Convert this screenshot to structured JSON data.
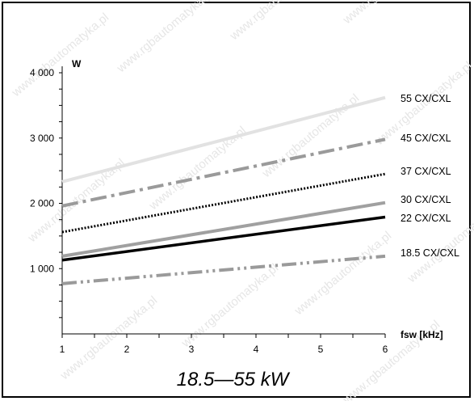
{
  "chart_data": {
    "type": "line",
    "title": "",
    "subtitle": "18.5—55 kW",
    "xlabel": "fsw [kHz]",
    "ylabel": "W",
    "x": [
      1,
      6
    ],
    "xlim": [
      1,
      6
    ],
    "ylim": [
      0,
      4000
    ],
    "x_ticks": [
      "1",
      "2",
      "3",
      "4",
      "5",
      "6"
    ],
    "y_ticks": [
      {
        "value": 1000,
        "label": "1 000"
      },
      {
        "value": 2000,
        "label": "2 000"
      },
      {
        "value": 3000,
        "label": "3 000"
      },
      {
        "value": 4000,
        "label": "4 000"
      }
    ],
    "grid": false,
    "legend": "right",
    "series": [
      {
        "name": "55 CX/CXL",
        "values": [
          2330,
          3620
        ],
        "color": "#e2e2e2",
        "dash": "solid",
        "width": 4
      },
      {
        "name": "45 CX/CXL",
        "values": [
          1960,
          2980
        ],
        "color": "#9a9a9a",
        "dash": "dashdot",
        "width": 4
      },
      {
        "name": "37 CX/CXL",
        "values": [
          1560,
          2450
        ],
        "color": "#000000",
        "dash": "dotted",
        "width": 3
      },
      {
        "name": "30 CX/CXL",
        "values": [
          1190,
          2010
        ],
        "color": "#a0a0a0",
        "dash": "solid",
        "width": 4
      },
      {
        "name": "22 CX/CXL",
        "values": [
          1130,
          1790
        ],
        "color": "#000000",
        "dash": "solid",
        "width": 3.5
      },
      {
        "name": "18.5 CX/CXL",
        "values": [
          770,
          1190
        ],
        "color": "#9a9a9a",
        "dash": "dashdotdot",
        "width": 4
      }
    ]
  },
  "watermark": "www.rgbautomatyka.pl"
}
